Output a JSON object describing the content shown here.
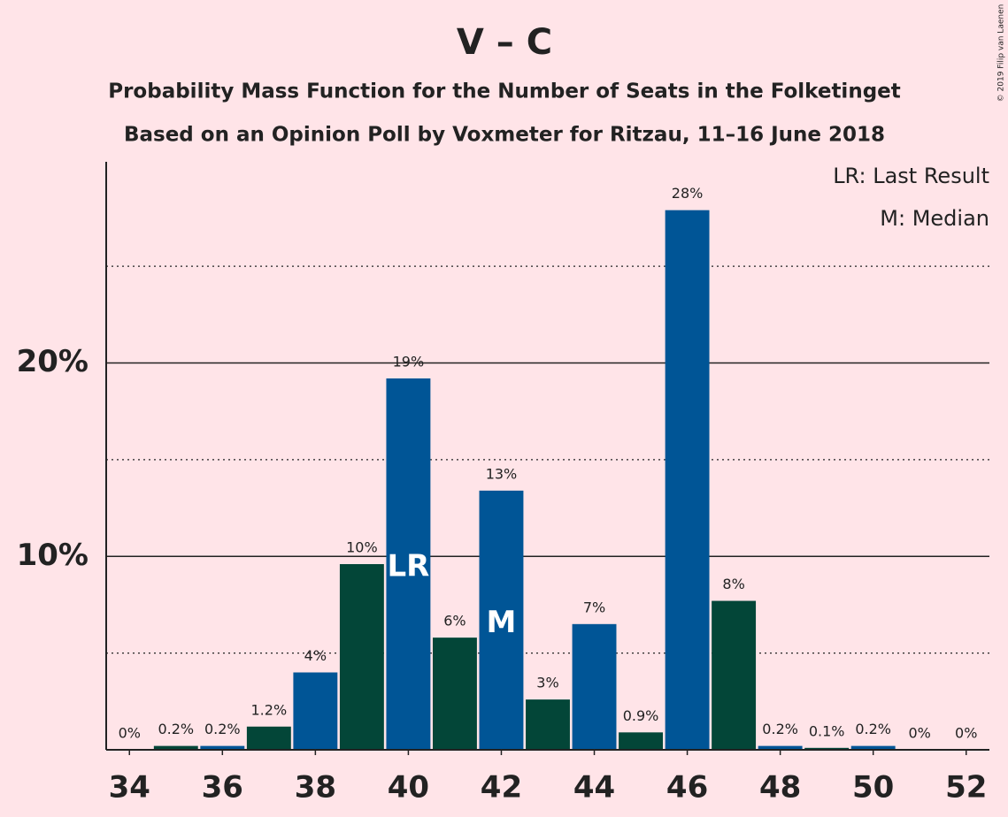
{
  "chart_data": {
    "type": "bar",
    "title": "V – C",
    "subtitle": [
      "Probability Mass Function for the Number of Seats in the Folketinget",
      "Based on an Opinion Poll by Voxmeter for Ritzau, 11–16 June 2018"
    ],
    "copyright": "© 2019 Filip van Laenen",
    "x": [
      34,
      35,
      36,
      37,
      38,
      39,
      40,
      41,
      42,
      43,
      44,
      45,
      46,
      47,
      48,
      49,
      50,
      51,
      52
    ],
    "values": [
      0,
      0.2,
      0.2,
      1.2,
      4.0,
      9.6,
      19.2,
      5.8,
      13.4,
      2.6,
      6.5,
      0.9,
      27.9,
      7.7,
      0.2,
      0.1,
      0.2,
      0,
      0
    ],
    "value_labels": [
      "0%",
      "0.2%",
      "0.2%",
      "1.2%",
      "4%",
      "10%",
      "19%",
      "6%",
      "13%",
      "3%",
      "7%",
      "0.9%",
      "28%",
      "8%",
      "0.2%",
      "0.1%",
      "0.2%",
      "0%",
      "0%"
    ],
    "colors": [
      "#005596",
      "#034638",
      "#005596",
      "#034638",
      "#005596",
      "#034638",
      "#005596",
      "#034638",
      "#005596",
      "#034638",
      "#005596",
      "#034638",
      "#005596",
      "#034638",
      "#005596",
      "#034638",
      "#005596",
      "#034638",
      "#005596"
    ],
    "xlim": [
      33.5,
      52.5
    ],
    "xticks": [
      34,
      36,
      38,
      40,
      42,
      44,
      46,
      48,
      50,
      52
    ],
    "ylim": [
      0,
      30.4
    ],
    "yticks": [
      {
        "value": 10,
        "label": "10%"
      },
      {
        "value": 20,
        "label": "20%"
      }
    ],
    "minor_yticks": [
      5,
      15,
      25
    ],
    "annotations": [
      {
        "text": "LR",
        "x": 40
      },
      {
        "text": "M",
        "x": 42
      }
    ],
    "legend": [
      "LR: Last Result",
      "M: Median"
    ]
  }
}
